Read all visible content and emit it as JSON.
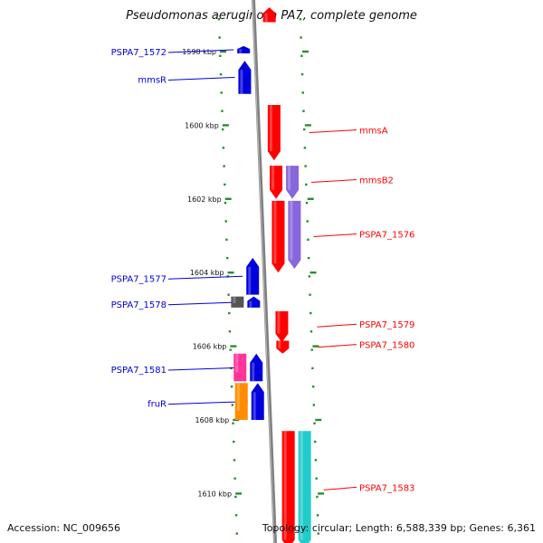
{
  "title": "Pseudomonas aeruginosa PA7, complete genome",
  "footer": {
    "accession": "Accession: NC_009656",
    "topology": "Topology: circular; Length: 6,588,339 bp; Genes: 6,361"
  },
  "scale_ticks": [
    {
      "kbp": 1598,
      "label": "1598 kbp"
    },
    {
      "kbp": 1600,
      "label": "1600 kbp"
    },
    {
      "kbp": 1602,
      "label": "1602 kbp"
    },
    {
      "kbp": 1604,
      "label": "1604 kbp"
    },
    {
      "kbp": 1606,
      "label": "1606 kbp"
    },
    {
      "kbp": 1608,
      "label": "1608 kbp"
    },
    {
      "kbp": 1610,
      "label": "1610 kbp"
    }
  ],
  "colors": {
    "forward": "#ff0000",
    "reverse": "#0000dd",
    "backbone": "#808080",
    "tick": "#2e8b2e",
    "purple": "#8866dd",
    "cyan": "#22cccc",
    "magenta": "#ff3399",
    "orange": "#ff8c00",
    "gray_gene": "#555555",
    "pink": "#ff8899"
  },
  "genes": [
    {
      "name": "PSPA7_1572",
      "label": "PSPA7_1572",
      "strand": "reverse",
      "start": 1597.85,
      "end": 1598.05,
      "track": "left1",
      "color": "reverse"
    },
    {
      "name": "mmsR",
      "label": "mmsR",
      "strand": "reverse",
      "start": 1598.25,
      "end": 1599.15,
      "track": "left1",
      "color": "reverse"
    },
    {
      "name": "mmsA",
      "label": "mmsA",
      "strand": "forward",
      "start": 1599.45,
      "end": 1600.95,
      "track": "right1",
      "color": "forward"
    },
    {
      "name": "mmsB2",
      "label": "mmsB2",
      "strand": "forward",
      "start": 1601.1,
      "end": 1602.0,
      "track": "right1",
      "color": "forward"
    },
    {
      "name": "mmsB2-pair",
      "label": "",
      "strand": "forward",
      "start": 1601.1,
      "end": 1602.0,
      "track": "right2",
      "color": "purple"
    },
    {
      "name": "PSPA7_1576",
      "label": "PSPA7_1576",
      "strand": "forward",
      "start": 1602.05,
      "end": 1604.0,
      "track": "right1",
      "color": "forward"
    },
    {
      "name": "PSPA7_1576-pair",
      "label": "",
      "strand": "forward",
      "start": 1602.05,
      "end": 1603.9,
      "track": "right2",
      "color": "purple"
    },
    {
      "name": "PSPA7_1577",
      "label": "PSPA7_1577",
      "strand": "reverse",
      "start": 1603.6,
      "end": 1604.6,
      "track": "left1",
      "color": "reverse"
    },
    {
      "name": "PSPA7_1578",
      "label": "PSPA7_1578",
      "strand": "reverse",
      "start": 1604.65,
      "end": 1604.95,
      "track": "left1",
      "color": "reverse"
    },
    {
      "name": "PSPA7_1578-pair",
      "label": "",
      "strand": "none",
      "start": 1604.65,
      "end": 1604.95,
      "track": "left2",
      "color": "gray_gene"
    },
    {
      "name": "PSPA7_1579",
      "label": "PSPA7_1579",
      "strand": "forward",
      "start": 1605.05,
      "end": 1605.9,
      "track": "right1",
      "color": "forward"
    },
    {
      "name": "PSPA7_1580",
      "label": "PSPA7_1580",
      "strand": "forward",
      "start": 1605.85,
      "end": 1606.2,
      "track": "right1",
      "color": "forward"
    },
    {
      "name": "PSPA7_1581",
      "label": "PSPA7_1581",
      "strand": "reverse",
      "start": 1606.2,
      "end": 1606.95,
      "track": "left1",
      "color": "reverse"
    },
    {
      "name": "PSPA7_1581-pair",
      "label": "",
      "strand": "none",
      "start": 1606.2,
      "end": 1606.95,
      "track": "left2",
      "color": "magenta"
    },
    {
      "name": "fruR",
      "label": "fruR",
      "strand": "reverse",
      "start": 1607.0,
      "end": 1608.0,
      "track": "left1",
      "color": "reverse"
    },
    {
      "name": "fruR-pair",
      "label": "",
      "strand": "none",
      "start": 1607.0,
      "end": 1608.0,
      "track": "left2",
      "color": "orange"
    },
    {
      "name": "PSPA7_1583",
      "label": "PSPA7_1583",
      "strand": "forward",
      "start": 1608.3,
      "end": 1611.5,
      "track": "right1",
      "color": "forward"
    },
    {
      "name": "PSPA7_1583-pair",
      "label": "",
      "strand": "forward",
      "start": 1608.3,
      "end": 1611.5,
      "track": "right2",
      "color": "cyan"
    },
    {
      "name": "top-gene",
      "label": "",
      "strand": "reverse",
      "start": 1596.8,
      "end": 1597.2,
      "track": "right1",
      "color": "forward"
    }
  ]
}
